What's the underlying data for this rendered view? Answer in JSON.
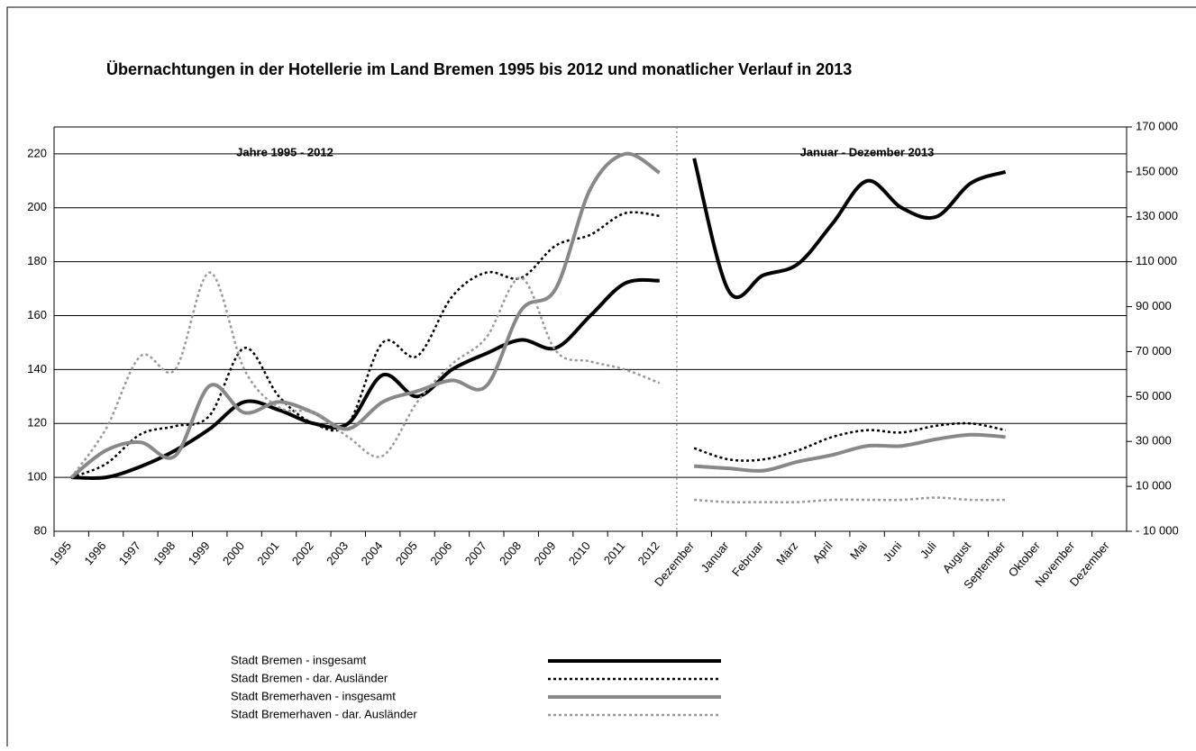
{
  "chart_data": {
    "type": "line",
    "title": "Übernachtungen in der Hotellerie im Land Bremen 1995 bis 2012 und monatlicher Verlauf in 2013",
    "annotations": [
      "Jahre 1995 - 2012",
      "Januar - Dezember 2013"
    ],
    "categories": [
      "1995",
      "1996",
      "1997",
      "1998",
      "1999",
      "2000",
      "2001",
      "2002",
      "2003",
      "2004",
      "2005",
      "2006",
      "2007",
      "2008",
      "2009",
      "2010",
      "2011",
      "2012",
      "Dezember",
      "Januar",
      "Februar",
      "März",
      "April",
      "Mai",
      "Juni",
      "Juli",
      "August",
      "September",
      "Oktober",
      "November",
      "Dezember"
    ],
    "ylim": [
      80,
      230
    ],
    "yticks": [
      80,
      100,
      120,
      140,
      160,
      180,
      200,
      220
    ],
    "y2lim": [
      -10000,
      170000
    ],
    "y2ticks": [
      {
        "value": -10000,
        "label": "- 10 000"
      },
      {
        "value": 10000,
        "label": "10 000"
      },
      {
        "value": 30000,
        "label": "30 000"
      },
      {
        "value": 50000,
        "label": "50 000"
      },
      {
        "value": 70000,
        "label": "70 000"
      },
      {
        "value": 90000,
        "label": "90 000"
      },
      {
        "value": 110000,
        "label": "110 000"
      },
      {
        "value": 130000,
        "label": "130 000"
      },
      {
        "value": 150000,
        "label": "150 000"
      },
      {
        "value": 170000,
        "label": "170 000"
      }
    ],
    "grid": true,
    "series": [
      {
        "name": "Stadt Bremen - insgesamt",
        "color": "#000000",
        "dashed": false,
        "values": [
          100,
          100,
          104,
          110,
          118,
          128,
          125,
          120,
          120,
          138,
          130,
          140,
          146,
          151,
          148,
          160,
          172,
          173,
          null,
          null,
          null,
          null,
          null,
          null,
          null,
          null,
          null,
          null,
          null,
          null,
          null
        ],
        "values_y2": [
          null,
          null,
          null,
          null,
          null,
          null,
          null,
          null,
          null,
          null,
          null,
          null,
          null,
          null,
          null,
          null,
          null,
          null,
          156000,
          97000,
          104000,
          109000,
          127000,
          146000,
          134000,
          130000,
          145000,
          150000,
          null,
          null,
          null
        ]
      },
      {
        "name": "Stadt Bremen - dar. Ausländer",
        "color": "#000000",
        "dashed": true,
        "values": [
          100,
          105,
          116,
          119,
          123,
          148,
          130,
          120,
          120,
          150,
          145,
          167,
          176,
          174,
          186,
          190,
          198,
          197,
          null,
          null,
          null,
          null,
          null,
          null,
          null,
          null,
          null,
          null,
          null,
          null,
          null
        ],
        "values_y2": [
          null,
          null,
          null,
          null,
          null,
          null,
          null,
          null,
          null,
          null,
          null,
          null,
          null,
          null,
          null,
          null,
          null,
          null,
          27000,
          22000,
          22000,
          26000,
          32000,
          35000,
          34000,
          37000,
          38000,
          35000,
          null,
          null,
          null
        ]
      },
      {
        "name": "Stadt Bremerhaven - insgesamt",
        "color": "#888888",
        "dashed": false,
        "values": [
          100,
          110,
          113,
          108,
          134,
          124,
          128,
          124,
          118,
          128,
          132,
          136,
          134,
          162,
          170,
          207,
          220,
          213,
          null,
          null,
          null,
          null,
          null,
          null,
          null,
          null,
          null,
          null,
          null,
          null,
          null
        ],
        "values_y2": [
          null,
          null,
          null,
          null,
          null,
          null,
          null,
          null,
          null,
          null,
          null,
          null,
          null,
          null,
          null,
          null,
          null,
          null,
          19000,
          18000,
          17000,
          21000,
          24000,
          28000,
          28000,
          31000,
          33000,
          32000,
          null,
          null,
          null
        ]
      },
      {
        "name": "Stadt Bremerhaven - dar. Ausländer",
        "color": "#999999",
        "dashed": true,
        "values": [
          100,
          118,
          145,
          140,
          176,
          140,
          126,
          124,
          115,
          108,
          128,
          142,
          152,
          174,
          147,
          143,
          140,
          135,
          null,
          null,
          null,
          null,
          null,
          null,
          null,
          null,
          null,
          null,
          null,
          null,
          null
        ],
        "values_y2": [
          null,
          null,
          null,
          null,
          null,
          null,
          null,
          null,
          null,
          null,
          null,
          null,
          null,
          null,
          null,
          null,
          null,
          null,
          4000,
          3000,
          3000,
          3000,
          4000,
          4000,
          4000,
          5000,
          4000,
          4000,
          null,
          null,
          null
        ]
      }
    ]
  }
}
